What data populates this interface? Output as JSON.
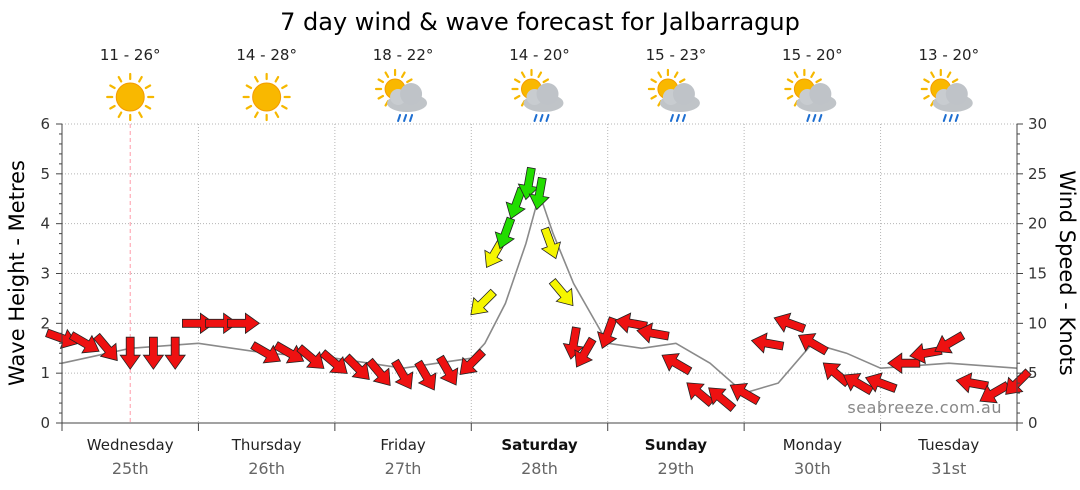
{
  "chart_data": {
    "type": "line",
    "title": "7 day wind & wave forecast for Jalbarragup",
    "ylabel_left": "Wave Height - Metres",
    "ylabel_right": "Wind Speed - Knots",
    "ylim_left": [
      0,
      6
    ],
    "ylim_right": [
      0,
      30
    ],
    "yticks_left": [
      0,
      1,
      2,
      3,
      4,
      5,
      6
    ],
    "yticks_right": [
      0,
      5,
      10,
      15,
      20,
      25,
      30
    ],
    "grid": true,
    "days": [
      {
        "name": "Wednesday",
        "date": "25th",
        "temp": "11 - 26°",
        "weather": "sun-icon",
        "bold": false
      },
      {
        "name": "Thursday",
        "date": "26th",
        "temp": "14 - 28°",
        "weather": "sun-icon",
        "bold": false
      },
      {
        "name": "Friday",
        "date": "27th",
        "temp": "18 - 22°",
        "weather": "rain-cloud-sun-icon",
        "bold": false
      },
      {
        "name": "Saturday",
        "date": "28th",
        "temp": "14 - 20°",
        "weather": "rain-cloud-sun-icon",
        "bold": true
      },
      {
        "name": "Sunday",
        "date": "29th",
        "temp": "15 - 23°",
        "weather": "rain-cloud-sun-icon",
        "bold": true
      },
      {
        "name": "Monday",
        "date": "30th",
        "temp": "15 - 20°",
        "weather": "rain-cloud-sun-icon",
        "bold": false
      },
      {
        "name": "Tuesday",
        "date": "31st",
        "temp": "13 - 20°",
        "weather": "rain-cloud-sun-icon",
        "bold": false
      }
    ],
    "series": [
      {
        "unit": "knots",
        "x_day": [
          0.0,
          0.17,
          0.33,
          0.5,
          0.67,
          0.83,
          1.0,
          1.17,
          1.33,
          1.5,
          1.67,
          1.83,
          2.0,
          2.17,
          2.33,
          2.5,
          2.67,
          2.83,
          3.0,
          3.08,
          3.17,
          3.25,
          3.33,
          3.42,
          3.5,
          3.58,
          3.67,
          3.75,
          3.83,
          4.0,
          4.17,
          4.33,
          4.5,
          4.67,
          4.83,
          5.0,
          5.17,
          5.33,
          5.5,
          5.67,
          5.83,
          6.0,
          6.17,
          6.33,
          6.5,
          6.67,
          6.83,
          7.0
        ],
        "values": [
          8.5,
          8,
          7.5,
          7,
          7,
          7,
          10,
          10,
          10,
          7,
          7,
          6.5,
          6,
          5.5,
          5,
          4.8,
          4.7,
          5.2,
          6,
          12,
          17,
          19,
          22,
          24,
          23,
          18,
          13,
          8,
          7,
          9,
          10,
          9,
          6,
          3,
          2.5,
          3,
          8,
          10,
          8,
          5,
          4,
          4,
          6,
          7,
          8,
          4,
          3,
          4
        ],
        "colors": [
          "red",
          "red",
          "red",
          "red",
          "red",
          "red",
          "red",
          "red",
          "red",
          "red",
          "red",
          "red",
          "red",
          "red",
          "red",
          "red",
          "red",
          "red",
          "red",
          "yellow",
          "yellow",
          "green",
          "green",
          "green",
          "green",
          "yellow",
          "yellow",
          "red",
          "red",
          "red",
          "red",
          "red",
          "red",
          "red",
          "red",
          "red",
          "red",
          "red",
          "red",
          "red",
          "red",
          "red",
          "red",
          "red",
          "red",
          "red",
          "red",
          "red"
        ],
        "directions_deg": [
          290,
          300,
          320,
          0,
          0,
          0,
          270,
          270,
          270,
          300,
          300,
          310,
          310,
          315,
          320,
          330,
          330,
          330,
          45,
          45,
          30,
          20,
          20,
          10,
          10,
          340,
          320,
          10,
          30,
          20,
          100,
          100,
          120,
          130,
          130,
          120,
          100,
          110,
          120,
          130,
          120,
          110,
          90,
          80,
          60,
          100,
          60,
          45
        ]
      },
      {
        "name": "Wave Height",
        "unit": "m",
        "x_day": [
          0.0,
          0.5,
          1.0,
          1.5,
          2.0,
          2.5,
          3.0,
          3.1,
          3.25,
          3.4,
          3.5,
          3.6,
          3.75,
          4.0,
          4.25,
          4.5,
          4.75,
          5.0,
          5.25,
          5.5,
          5.75,
          6.0,
          6.5,
          7.0
        ],
        "values": [
          1.2,
          1.5,
          1.6,
          1.4,
          1.3,
          1.1,
          1.3,
          1.6,
          2.4,
          3.6,
          4.6,
          3.8,
          2.8,
          1.6,
          1.5,
          1.6,
          1.2,
          0.6,
          0.8,
          1.6,
          1.4,
          1.1,
          1.2,
          1.1
        ]
      }
    ],
    "current_time_marker_day": 0.5,
    "watermark": "seabreeze.com.au"
  }
}
